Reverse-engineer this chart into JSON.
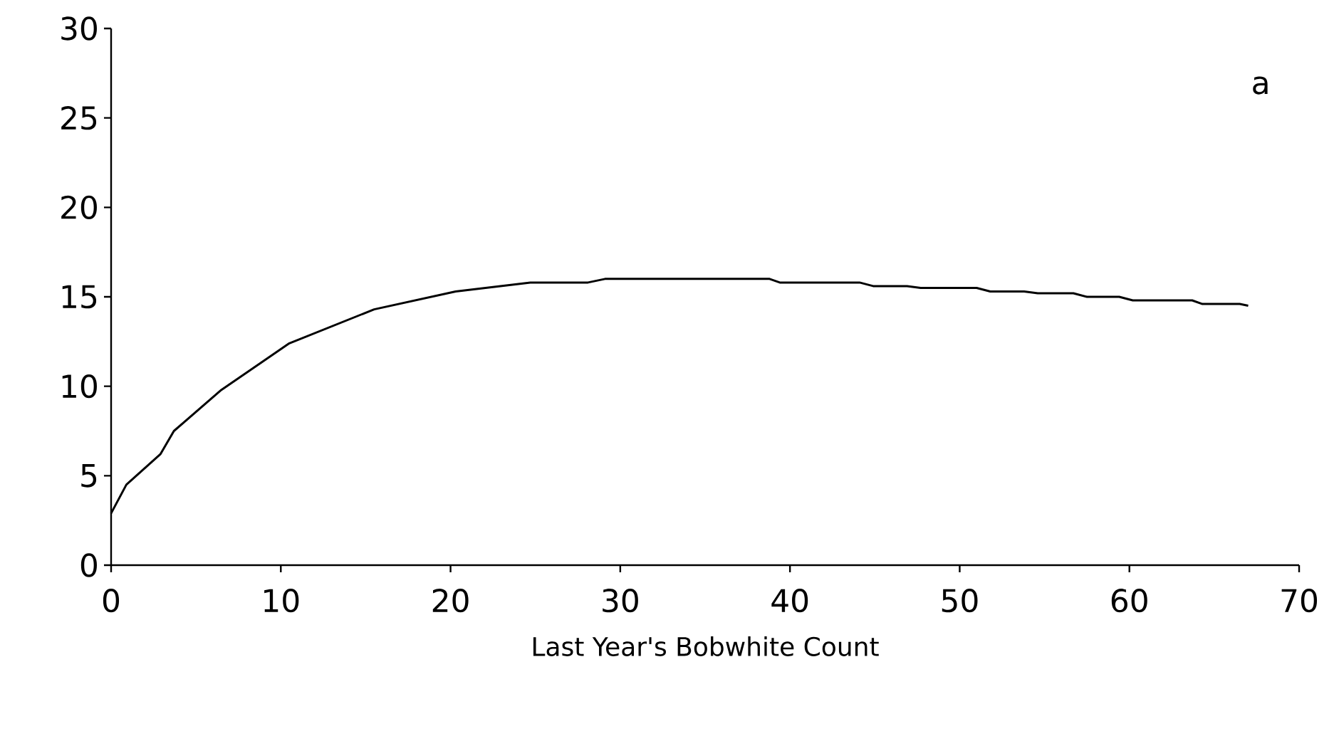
{
  "chart_data": {
    "type": "line",
    "xlabel": "Last Year's Bobwhite Count",
    "annotations": [
      "a"
    ],
    "x": [
      0,
      0.9,
      2.9,
      3.7,
      6.5,
      10.5,
      15.5,
      20.3,
      24.7,
      28.1,
      29.1,
      38.8,
      39.4,
      44.1,
      44.9,
      46.9,
      47.7,
      51,
      51.8,
      53.8,
      54.6,
      56.7,
      57.5,
      59.4,
      60.2,
      63.7,
      64.3,
      66.5,
      67
    ],
    "series": [
      {
        "color": "#000000",
        "values": [
          2.9,
          4.5,
          6.2,
          7.5,
          9.8,
          12.4,
          14.3,
          15.3,
          15.8,
          15.8,
          16,
          16,
          15.8,
          15.8,
          15.6,
          15.6,
          15.5,
          15.5,
          15.3,
          15.3,
          15.2,
          15.2,
          15,
          15,
          14.8,
          14.8,
          14.6,
          14.6,
          14.5
        ]
      }
    ],
    "xlim": [
      0,
      70
    ],
    "ylim": [
      0,
      30
    ],
    "xticks": [
      0,
      10,
      20,
      30,
      40,
      50,
      60,
      70
    ],
    "yticks": [
      0,
      5,
      10,
      15,
      20,
      25,
      30
    ],
    "grid": false,
    "marker": "none",
    "line_style": "solid"
  }
}
